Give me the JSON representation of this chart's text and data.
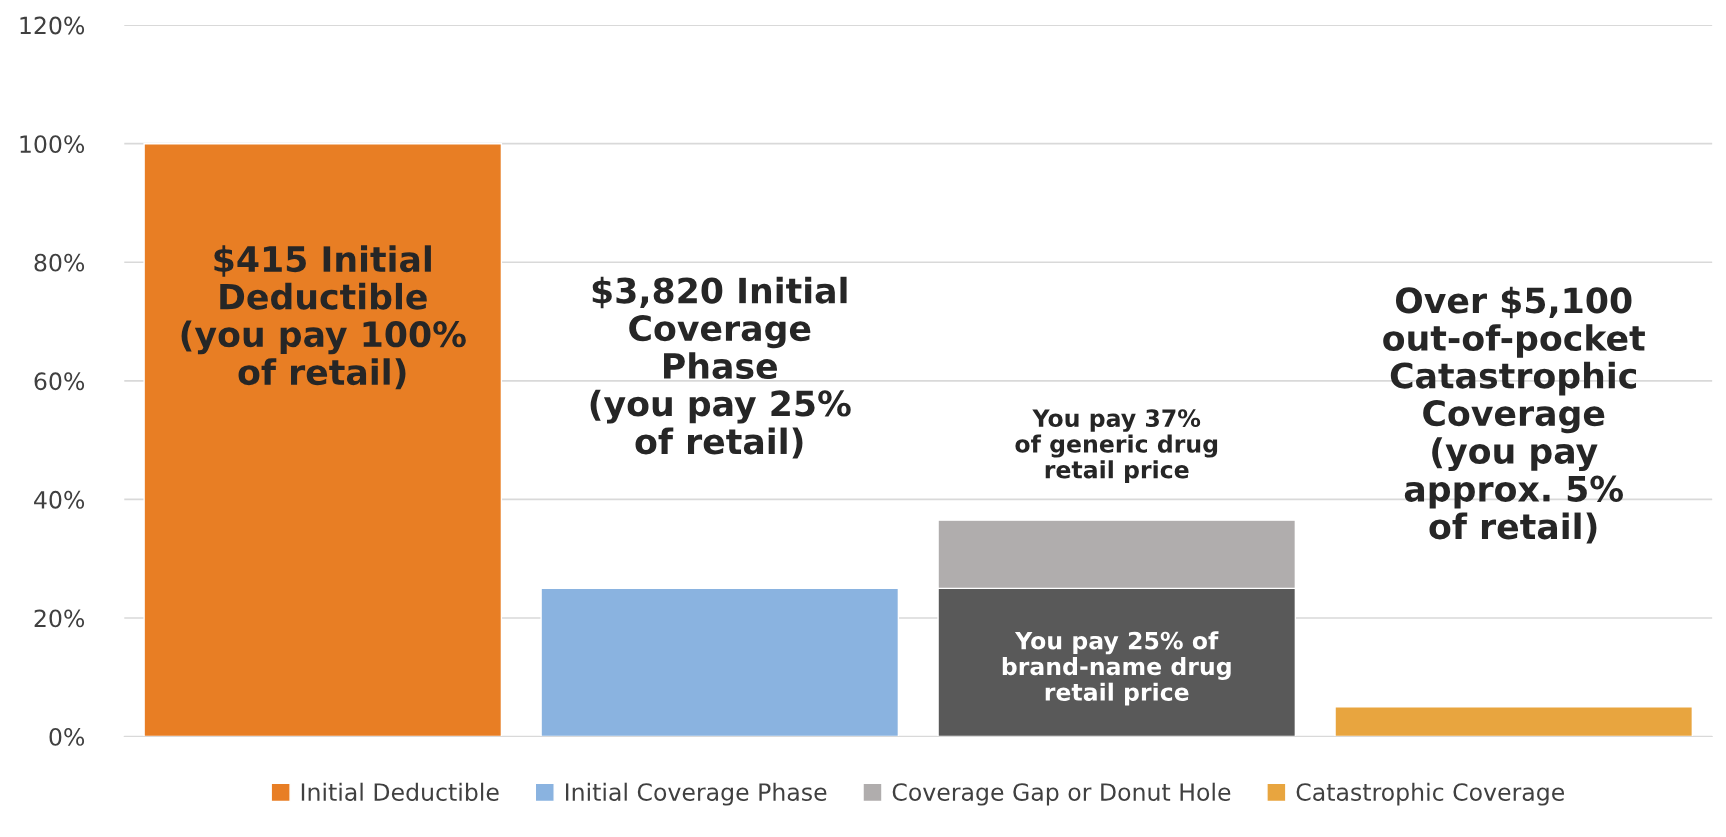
{
  "chart_data": {
    "type": "bar",
    "categories": [
      null,
      null,
      null,
      null
    ],
    "series": [
      {
        "name": "Initial Deductible",
        "color": "#e87e24",
        "values": [
          100,
          null,
          null,
          null
        ]
      },
      {
        "name": "Initial Coverage Phase",
        "color": "#8ab3e0",
        "values": [
          null,
          25,
          null,
          null
        ]
      },
      {
        "color": "#595959",
        "values": [
          null,
          null,
          25,
          null
        ]
      },
      {
        "name": "Coverage Gap or Donut Hole",
        "color": "#b0adad",
        "values": [
          null,
          null,
          11.5,
          null
        ],
        "base": [
          null,
          null,
          25,
          null
        ]
      },
      {
        "name": "Catastrophic Coverage",
        "color": "#e8a53f",
        "values": [
          null,
          null,
          null,
          5
        ]
      }
    ],
    "ylim": [
      0,
      120
    ],
    "yticks": [
      {
        "value": 0,
        "label": "0%"
      },
      {
        "value": 20,
        "label": "20%"
      },
      {
        "value": 40,
        "label": "40%"
      },
      {
        "value": 60,
        "label": "60%"
      },
      {
        "value": 80,
        "label": "80%"
      },
      {
        "value": 100,
        "label": "100%"
      },
      {
        "value": 120,
        "label": "120%"
      }
    ],
    "grid": "y",
    "legend": "bottom",
    "tick_labels": "y",
    "annotations": [
      "$415 Initial\nDeductible\n(you pay 100%\nof retail)",
      "$3,820 Initial\nCoverage\nPhase\n(you pay 25%\nof retail)",
      "You pay 37%\nof generic drug\nretail price",
      "You pay 25% of\nbrand-name drug\nretail price",
      "Over $5,100\nout-of-pocket\nCatastrophic\nCoverage\n(you pay\napprox. 5%\nof retail)"
    ]
  }
}
